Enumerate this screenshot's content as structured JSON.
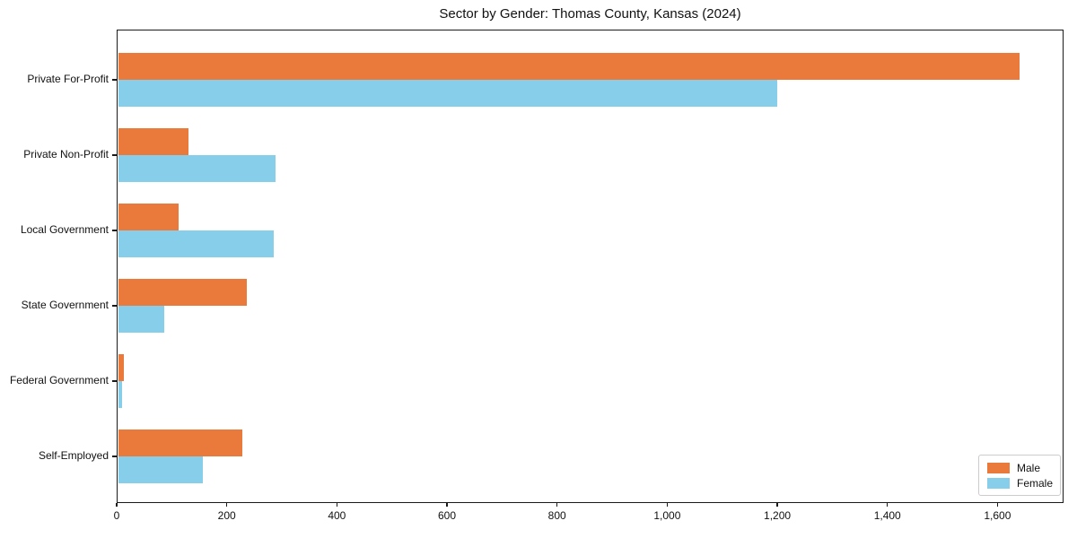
{
  "chart_data": {
    "type": "bar",
    "orientation": "horizontal",
    "title": "Sector by Gender: Thomas County, Kansas (2024)",
    "categories": [
      "Private For-Profit",
      "Private Non-Profit",
      "Local Government",
      "State Government",
      "Federal Government",
      "Self-Employed"
    ],
    "series": [
      {
        "name": "Male",
        "color": "#E97A3B",
        "values": [
          1640,
          130,
          112,
          236,
          13,
          229
        ]
      },
      {
        "name": "Female",
        "color": "#87CEEB",
        "values": [
          1200,
          288,
          285,
          86,
          10,
          156
        ]
      }
    ],
    "xlabel": "",
    "ylabel": "",
    "xlim": [
      0,
      1720
    ],
    "xticks": [
      {
        "value": 0,
        "label": "0"
      },
      {
        "value": 200,
        "label": "200"
      },
      {
        "value": 400,
        "label": "400"
      },
      {
        "value": 600,
        "label": "600"
      },
      {
        "value": 800,
        "label": "800"
      },
      {
        "value": 1000,
        "label": "1,000"
      },
      {
        "value": 1200,
        "label": "1,200"
      },
      {
        "value": 1400,
        "label": "1,400"
      },
      {
        "value": 1600,
        "label": "1,600"
      }
    ],
    "grid": false,
    "legend_position": "lower right"
  }
}
